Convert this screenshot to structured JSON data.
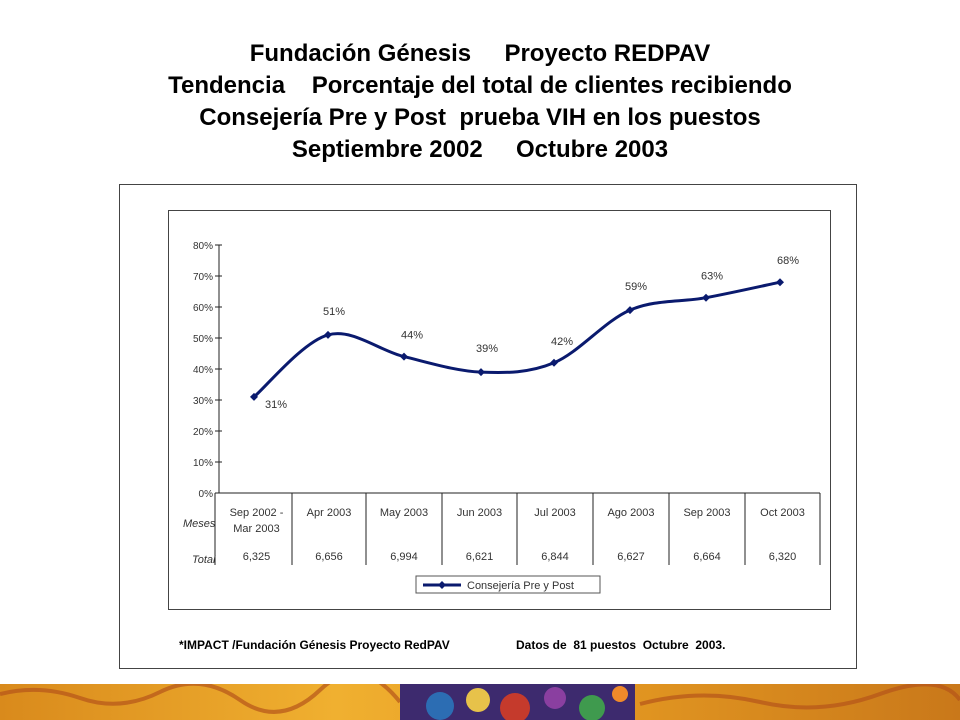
{
  "header": {
    "title_lines": [
      "Fundación Génesis     Proyecto REDPAV",
      "Tendencia    Porcentaje del total de clientes recibiendo",
      "Consejería Pre y Post  prueba VIH en los puestos",
      "Septiembre 2002     Octubre 2003"
    ]
  },
  "chart_data": {
    "type": "line",
    "categories": [
      "Sep 2002 - Mar 2003",
      "Apr 2003",
      "May 2003",
      "Jun 2003",
      "Jul 2003",
      "Ago 2003",
      "Sep 2003",
      "Oct 2003"
    ],
    "category_lines": [
      [
        "Sep 2002 -",
        "Mar 2003"
      ],
      [
        "Apr 2003"
      ],
      [
        "May 2003"
      ],
      [
        "Jun 2003"
      ],
      [
        "Jul 2003"
      ],
      [
        "Ago 2003"
      ],
      [
        "Sep 2003"
      ],
      [
        "Oct 2003"
      ]
    ],
    "series": [
      {
        "name": "Consejería  Pre y Post",
        "values": [
          31,
          51,
          44,
          39,
          42,
          59,
          63,
          68
        ],
        "color": "#0a1a6e"
      }
    ],
    "data_labels": [
      "31%",
      "51%",
      "44%",
      "39%",
      "42%",
      "59%",
      "63%",
      "68%"
    ],
    "y_ticks": [
      "0%",
      "10%",
      "20%",
      "30%",
      "40%",
      "50%",
      "60%",
      "70%",
      "80%"
    ],
    "ylim": [
      0,
      80
    ],
    "table": {
      "row_headers": [
        "Meses",
        "Total"
      ],
      "totals": [
        "6,325",
        "6,656",
        "6,994",
        "6,621",
        "6,844",
        "6,627",
        "6,664",
        "6,320"
      ]
    },
    "legend_position": "bottom-center",
    "grid": false
  },
  "footnote": {
    "left": "*IMPACT /Fundación Génesis Proyecto RedPAV",
    "right": "Datos de  81 puestos  Octubre  2003."
  }
}
